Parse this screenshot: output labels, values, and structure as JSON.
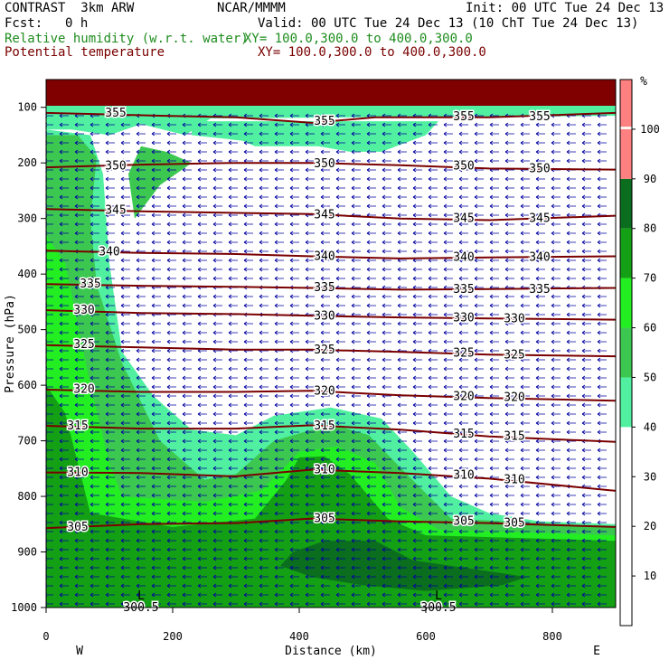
{
  "header": {
    "model_line": "CONTRAST  3km ARW",
    "center": "NCAR/MMMM",
    "init": "Init: 00 UTC Tue 24 Dec 13",
    "fcst_label": "Fcst:",
    "fcst_value": "0 h",
    "valid": "Valid: 00 UTC Tue 24 Dec 13 (10 ChT Tue 24 Dec 13)",
    "field1_name": "Relative humidity (w.r.t. water)",
    "field1_xy": "XY= 100.0,300.0 to 400.0,300.0",
    "field2_name": "Potential temperature",
    "field2_xy": "XY= 100.0,300.0 to 400.0,300.0"
  },
  "colors": {
    "rh_50_60": "#50f0a0",
    "rh_60_70": "#3cc850",
    "rh_70_80": "#22ee22",
    "rh_80_90": "#14a014",
    "rh_90_100": "#0a6e1e",
    "rh_over_100": "#ff8080",
    "theta_contour": "#7a0000",
    "top_band": "#800000",
    "wind_vector": "#0000a0"
  },
  "chart_data": {
    "type": "contour-cross-section",
    "xlabel": "Distance (km)",
    "ylabel": "Pressure (hPa)",
    "xlim": [
      0,
      900
    ],
    "ylim": [
      1000,
      50
    ],
    "x_ticks": [
      "0",
      "200",
      "400",
      "600",
      "800"
    ],
    "y_ticks": [
      "100",
      "200",
      "300",
      "400",
      "500",
      "600",
      "700",
      "800",
      "900",
      "1000"
    ],
    "x_endpoints": [
      "W",
      "E"
    ],
    "colorbar": {
      "unit": "%",
      "labels": [
        "10",
        "20",
        "30",
        "40",
        "50",
        "60",
        "70",
        "80",
        "90",
        "100"
      ]
    },
    "theta_contours": [
      {
        "value": 355,
        "points": [
          [
            0,
            110
          ],
          [
            180,
            115
          ],
          [
            300,
            118
          ],
          [
            420,
            128
          ],
          [
            520,
            118
          ],
          [
            700,
            118
          ],
          [
            900,
            110
          ]
        ]
      },
      {
        "value": 350,
        "points": [
          [
            0,
            208
          ],
          [
            150,
            203
          ],
          [
            300,
            200
          ],
          [
            420,
            200
          ],
          [
            560,
            204
          ],
          [
            700,
            210
          ],
          [
            900,
            212
          ]
        ]
      },
      {
        "value": 345,
        "points": [
          [
            0,
            283
          ],
          [
            150,
            287
          ],
          [
            300,
            290
          ],
          [
            420,
            292
          ],
          [
            560,
            300
          ],
          [
            700,
            303
          ],
          [
            900,
            295
          ]
        ]
      },
      {
        "value": 340,
        "points": [
          [
            0,
            358
          ],
          [
            150,
            362
          ],
          [
            300,
            364
          ],
          [
            420,
            368
          ],
          [
            560,
            372
          ],
          [
            700,
            370
          ],
          [
            900,
            368
          ]
        ]
      },
      {
        "value": 335,
        "points": [
          [
            0,
            418
          ],
          [
            150,
            421
          ],
          [
            300,
            423
          ],
          [
            420,
            425
          ],
          [
            560,
            428
          ],
          [
            700,
            427
          ],
          [
            900,
            425
          ]
        ]
      },
      {
        "value": 330,
        "points": [
          [
            0,
            465
          ],
          [
            150,
            470
          ],
          [
            300,
            472
          ],
          [
            420,
            475
          ],
          [
            560,
            478
          ],
          [
            700,
            480
          ],
          [
            900,
            482
          ]
        ]
      },
      {
        "value": 325,
        "points": [
          [
            0,
            528
          ],
          [
            150,
            532
          ],
          [
            300,
            536
          ],
          [
            420,
            536
          ],
          [
            560,
            540
          ],
          [
            700,
            545
          ],
          [
            900,
            548
          ]
        ]
      },
      {
        "value": 320,
        "points": [
          [
            0,
            608
          ],
          [
            150,
            612
          ],
          [
            300,
            612
          ],
          [
            420,
            610
          ],
          [
            560,
            618
          ],
          [
            700,
            623
          ],
          [
            900,
            628
          ]
        ]
      },
      {
        "value": 315,
        "points": [
          [
            0,
            673
          ],
          [
            150,
            678
          ],
          [
            300,
            678
          ],
          [
            420,
            672
          ],
          [
            560,
            680
          ],
          [
            700,
            692
          ],
          [
            900,
            702
          ]
        ]
      },
      {
        "value": 310,
        "points": [
          [
            0,
            757
          ],
          [
            150,
            758
          ],
          [
            300,
            764
          ],
          [
            420,
            752
          ],
          [
            560,
            758
          ],
          [
            700,
            768
          ],
          [
            900,
            790
          ]
        ]
      },
      {
        "value": 305,
        "points": [
          [
            0,
            857
          ],
          [
            150,
            850
          ],
          [
            300,
            848
          ],
          [
            420,
            840
          ],
          [
            560,
            845
          ],
          [
            700,
            848
          ],
          [
            900,
            855
          ]
        ]
      }
    ],
    "theta_labels": [
      {
        "text": "355",
        "x": 110,
        "p": 110
      },
      {
        "text": "355",
        "x": 440,
        "p": 125
      },
      {
        "text": "355",
        "x": 660,
        "p": 117
      },
      {
        "text": "355",
        "x": 780,
        "p": 117
      },
      {
        "text": "350",
        "x": 110,
        "p": 205
      },
      {
        "text": "350",
        "x": 440,
        "p": 201
      },
      {
        "text": "350",
        "x": 660,
        "p": 205
      },
      {
        "text": "350",
        "x": 780,
        "p": 210
      },
      {
        "text": "345",
        "x": 110,
        "p": 285
      },
      {
        "text": "345",
        "x": 440,
        "p": 293
      },
      {
        "text": "345",
        "x": 660,
        "p": 300
      },
      {
        "text": "345",
        "x": 780,
        "p": 300
      },
      {
        "text": "340",
        "x": 100,
        "p": 360
      },
      {
        "text": "340",
        "x": 440,
        "p": 368
      },
      {
        "text": "340",
        "x": 660,
        "p": 370
      },
      {
        "text": "340",
        "x": 780,
        "p": 370
      },
      {
        "text": "335",
        "x": 70,
        "p": 418
      },
      {
        "text": "335",
        "x": 440,
        "p": 424
      },
      {
        "text": "335",
        "x": 660,
        "p": 427
      },
      {
        "text": "335",
        "x": 780,
        "p": 427
      },
      {
        "text": "330",
        "x": 60,
        "p": 465
      },
      {
        "text": "330",
        "x": 440,
        "p": 475
      },
      {
        "text": "330",
        "x": 660,
        "p": 479
      },
      {
        "text": "330",
        "x": 740,
        "p": 480
      },
      {
        "text": "325",
        "x": 60,
        "p": 527
      },
      {
        "text": "325",
        "x": 440,
        "p": 536
      },
      {
        "text": "325",
        "x": 660,
        "p": 542
      },
      {
        "text": "325",
        "x": 740,
        "p": 545
      },
      {
        "text": "320",
        "x": 60,
        "p": 607
      },
      {
        "text": "320",
        "x": 440,
        "p": 610
      },
      {
        "text": "320",
        "x": 660,
        "p": 620
      },
      {
        "text": "320",
        "x": 740,
        "p": 622
      },
      {
        "text": "315",
        "x": 50,
        "p": 673
      },
      {
        "text": "315",
        "x": 440,
        "p": 673
      },
      {
        "text": "315",
        "x": 660,
        "p": 688
      },
      {
        "text": "315",
        "x": 740,
        "p": 692
      },
      {
        "text": "310",
        "x": 50,
        "p": 757
      },
      {
        "text": "310",
        "x": 440,
        "p": 752
      },
      {
        "text": "310",
        "x": 660,
        "p": 762
      },
      {
        "text": "310",
        "x": 740,
        "p": 770
      },
      {
        "text": "305",
        "x": 50,
        "p": 855
      },
      {
        "text": "305",
        "x": 440,
        "p": 840
      },
      {
        "text": "305",
        "x": 660,
        "p": 845
      },
      {
        "text": "305",
        "x": 740,
        "p": 848
      },
      {
        "text": "300.5",
        "x": 150,
        "p": 1000
      },
      {
        "text": "300.5",
        "x": 620,
        "p": 1000
      }
    ],
    "low_markers": [
      {
        "text": "L",
        "x": 150,
        "p": 985
      },
      {
        "text": "L",
        "x": 620,
        "p": 985
      }
    ],
    "rh_regions": [
      {
        "band": "rh_50_60",
        "points": [
          [
            0,
            140
          ],
          [
            40,
            140
          ],
          [
            100,
            150
          ],
          [
            150,
            130
          ],
          [
            220,
            150
          ],
          [
            260,
            120
          ],
          [
            480,
            118
          ],
          [
            650,
            118
          ],
          [
            900,
            115
          ],
          [
            900,
            50
          ],
          [
            0,
            50
          ]
        ]
      },
      {
        "band": "rh_50_60",
        "points": [
          [
            0,
            140
          ],
          [
            70,
            150
          ],
          [
            90,
            220
          ],
          [
            100,
            380
          ],
          [
            120,
            540
          ],
          [
            170,
            620
          ],
          [
            230,
            680
          ],
          [
            300,
            690
          ],
          [
            360,
            655
          ],
          [
            450,
            640
          ],
          [
            530,
            660
          ],
          [
            580,
            720
          ],
          [
            640,
            800
          ],
          [
            700,
            830
          ],
          [
            780,
            845
          ],
          [
            900,
            850
          ],
          [
            900,
            1020
          ],
          [
            0,
            1020
          ]
        ]
      },
      {
        "band": "rh_50_60",
        "points": [
          [
            230,
            150
          ],
          [
            310,
            160
          ],
          [
            330,
            170
          ],
          [
            430,
            170
          ],
          [
            480,
            180
          ],
          [
            530,
            180
          ],
          [
            600,
            150
          ],
          [
            620,
            125
          ],
          [
            230,
            125
          ]
        ]
      },
      {
        "band": "rh_60_70",
        "points": [
          [
            0,
            150
          ],
          [
            50,
            150
          ],
          [
            80,
            190
          ],
          [
            70,
            300
          ],
          [
            80,
            420
          ],
          [
            120,
            560
          ],
          [
            180,
            700
          ],
          [
            250,
            770
          ],
          [
            300,
            760
          ],
          [
            360,
            700
          ],
          [
            450,
            670
          ],
          [
            510,
            690
          ],
          [
            570,
            760
          ],
          [
            640,
            840
          ],
          [
            900,
            855
          ],
          [
            900,
            1020
          ],
          [
            0,
            1020
          ]
        ]
      },
      {
        "band": "rh_60_70",
        "points": [
          [
            150,
            170
          ],
          [
            190,
            180
          ],
          [
            230,
            200
          ],
          [
            180,
            240
          ],
          [
            140,
            300
          ],
          [
            130,
            220
          ]
        ]
      },
      {
        "band": "rh_70_80",
        "points": [
          [
            0,
            330
          ],
          [
            30,
            380
          ],
          [
            70,
            600
          ],
          [
            100,
            740
          ],
          [
            120,
            800
          ],
          [
            250,
            810
          ],
          [
            340,
            790
          ],
          [
            400,
            720
          ],
          [
            460,
            710
          ],
          [
            520,
            740
          ],
          [
            560,
            820
          ],
          [
            620,
            860
          ],
          [
            900,
            870
          ],
          [
            900,
            1020
          ],
          [
            0,
            1020
          ]
        ]
      },
      {
        "band": "rh_80_90",
        "points": [
          [
            0,
            600
          ],
          [
            30,
            650
          ],
          [
            70,
            830
          ],
          [
            200,
            855
          ],
          [
            330,
            840
          ],
          [
            380,
            770
          ],
          [
            400,
            730
          ],
          [
            440,
            728
          ],
          [
            480,
            760
          ],
          [
            540,
            840
          ],
          [
            600,
            870
          ],
          [
            900,
            880
          ],
          [
            900,
            1020
          ],
          [
            0,
            1020
          ]
        ]
      },
      {
        "band": "rh_90_100",
        "points": [
          [
            390,
            900
          ],
          [
            440,
            880
          ],
          [
            520,
            880
          ],
          [
            580,
            915
          ],
          [
            700,
            935
          ],
          [
            760,
            945
          ],
          [
            720,
            960
          ],
          [
            600,
            970
          ],
          [
            500,
            960
          ],
          [
            420,
            945
          ],
          [
            370,
            925
          ]
        ]
      }
    ]
  }
}
